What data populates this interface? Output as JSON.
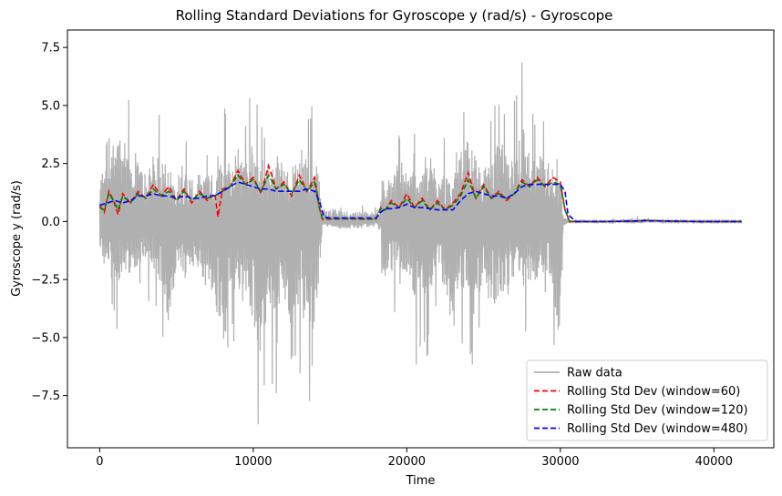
{
  "chart_data": {
    "type": "line",
    "title": "Rolling Standard Deviations for Gyroscope y (rad/s) - Gyroscope",
    "xlabel": "Time",
    "ylabel": "Gyroscope y (rad/s)",
    "xlim": [
      -2100,
      43900
    ],
    "ylim": [
      -9.75,
      8.25
    ],
    "xticks": [
      0,
      10000,
      20000,
      30000,
      40000
    ],
    "xtick_labels": [
      "0",
      "10000",
      "20000",
      "30000",
      "40000"
    ],
    "yticks": [
      -7.5,
      -5.0,
      -2.5,
      0.0,
      2.5,
      5.0,
      7.5
    ],
    "ytick_labels": [
      "−7.5",
      "−5.0",
      "−2.5",
      "0.0",
      "2.5",
      "5.0",
      "7.5"
    ],
    "grid": false,
    "legend_position": "lower-right",
    "raw_envelope": {
      "x": [
        0,
        500,
        1000,
        1500,
        2000,
        2500,
        3000,
        3500,
        4000,
        4500,
        5000,
        5500,
        6000,
        6500,
        7000,
        7500,
        8000,
        8500,
        9000,
        9500,
        10000,
        10500,
        11000,
        11500,
        12000,
        12500,
        13000,
        13500,
        14000,
        14300,
        14500,
        15000,
        16000,
        17000,
        18000,
        18300,
        18500,
        19000,
        19500,
        20000,
        20500,
        21000,
        21500,
        22000,
        22500,
        23000,
        23500,
        24000,
        24500,
        25000,
        25500,
        26000,
        26500,
        27000,
        27500,
        28000,
        28500,
        29000,
        29500,
        30000,
        30200,
        30400,
        31000,
        33000,
        35000,
        35500,
        37000,
        39000,
        41800
      ],
      "upper": [
        2.5,
        6.1,
        5.0,
        6.6,
        4.2,
        4.0,
        3.0,
        4.5,
        4.2,
        3.8,
        3.2,
        3.5,
        3.0,
        3.2,
        3.5,
        3.0,
        4.6,
        3.5,
        5.3,
        4.0,
        5.5,
        4.5,
        4.0,
        4.0,
        4.2,
        3.5,
        5.2,
        4.3,
        4.3,
        3.0,
        0.5,
        1.0,
        0.7,
        0.7,
        0.6,
        1.5,
        3.0,
        2.8,
        4.6,
        3.2,
        3.7,
        3.0,
        4.5,
        3.5,
        3.3,
        2.8,
        4.5,
        5.5,
        4.5,
        3.5,
        4.2,
        6.0,
        4.3,
        4.7,
        7.3,
        3.8,
        4.6,
        4.4,
        3.6,
        2.5,
        0.3,
        0.15,
        0.05,
        0.08,
        0.2,
        0.15,
        0.05,
        0.05,
        0.05
      ],
      "lower": [
        -1.5,
        -4.3,
        -4.2,
        -3.5,
        -3.5,
        -3.0,
        -2.5,
        -3.5,
        -4.6,
        -7.0,
        -3.2,
        -4.0,
        -3.0,
        -3.0,
        -5.0,
        -5.8,
        -8.8,
        -5.0,
        -5.5,
        -5.5,
        -7.0,
        -9.1,
        -6.5,
        -6.5,
        -5.5,
        -7.3,
        -5.6,
        -7.8,
        -8.0,
        -3.5,
        -0.3,
        -0.4,
        -0.5,
        -0.5,
        -0.2,
        -0.8,
        -4.3,
        -3.5,
        -3.0,
        -3.8,
        -5.5,
        -6.0,
        -5.0,
        -3.8,
        -5.0,
        -5.0,
        -4.5,
        -4.5,
        -7.2,
        -4.0,
        -6.0,
        -5.0,
        -4.5,
        -4.0,
        -5.0,
        -4.0,
        -4.0,
        -3.8,
        -4.5,
        -9.0,
        -0.3,
        -0.15,
        -0.05,
        -0.08,
        -0.15,
        -0.1,
        -0.05,
        -0.05,
        -0.05
      ]
    },
    "series": [
      {
        "name": "Raw data",
        "color": "#b0b0b0",
        "style": "solid",
        "x": [
          0,
          41800
        ],
        "values": [
          0.0,
          0.0
        ]
      },
      {
        "name": "Rolling Std Dev (window=60)",
        "color": "#ff0000",
        "style": "dashed",
        "x": [
          0,
          300,
          600,
          900,
          1200,
          1500,
          2000,
          2500,
          3000,
          3500,
          4000,
          4500,
          5000,
          5500,
          6000,
          6500,
          7000,
          7500,
          7700,
          8000,
          8500,
          9000,
          9500,
          10000,
          10500,
          11000,
          11500,
          12000,
          12500,
          13000,
          13500,
          14000,
          14300,
          14500,
          15000,
          16000,
          17000,
          18000,
          18300,
          18600,
          19000,
          19500,
          20000,
          20500,
          21000,
          21500,
          22000,
          22500,
          23000,
          23500,
          24000,
          24500,
          25000,
          25500,
          26000,
          26500,
          27000,
          27500,
          28000,
          28500,
          29000,
          29500,
          30000,
          30300,
          30600,
          31000,
          33000,
          35000,
          35500,
          37000,
          39000,
          41800
        ],
        "values": [
          0.7,
          0.4,
          1.3,
          0.9,
          0.3,
          1.2,
          0.8,
          1.3,
          1.0,
          1.6,
          1.1,
          1.5,
          0.9,
          1.4,
          0.8,
          1.3,
          0.9,
          1.2,
          0.2,
          1.4,
          1.5,
          2.2,
          1.6,
          1.9,
          1.2,
          2.4,
          1.4,
          1.7,
          1.1,
          2.0,
          1.3,
          1.9,
          0.6,
          0.1,
          0.1,
          0.12,
          0.1,
          0.1,
          0.6,
          0.5,
          0.9,
          0.6,
          1.2,
          0.6,
          1.0,
          0.5,
          0.9,
          0.5,
          0.8,
          1.2,
          2.1,
          1.0,
          1.6,
          1.0,
          1.3,
          0.9,
          1.2,
          1.8,
          1.5,
          1.9,
          1.5,
          1.9,
          1.7,
          0.5,
          0.0,
          0.0,
          0.0,
          0.02,
          0.05,
          0.02,
          0.0,
          0.0
        ]
      },
      {
        "name": "Rolling Std Dev (window=120)",
        "color": "#008000",
        "style": "dashed",
        "x": [
          0,
          300,
          600,
          900,
          1200,
          1500,
          2000,
          2500,
          3000,
          3500,
          4000,
          4500,
          5000,
          5500,
          6000,
          6500,
          7000,
          7500,
          8000,
          8500,
          9000,
          9500,
          10000,
          10500,
          11000,
          11500,
          12000,
          12500,
          13000,
          13500,
          14000,
          14300,
          14500,
          15000,
          16000,
          17000,
          18000,
          18300,
          18600,
          19000,
          19500,
          20000,
          20500,
          21000,
          21500,
          22000,
          22500,
          23000,
          23500,
          24000,
          24500,
          25000,
          25500,
          26000,
          26500,
          27000,
          27500,
          28000,
          28500,
          29000,
          29500,
          30000,
          30300,
          30600,
          31000,
          33000,
          35000,
          35500,
          37000,
          39000,
          41800
        ],
        "values": [
          0.6,
          0.5,
          1.2,
          0.9,
          0.5,
          1.1,
          0.8,
          1.2,
          1.0,
          1.4,
          1.1,
          1.3,
          0.9,
          1.3,
          0.9,
          1.2,
          1.0,
          1.1,
          1.3,
          1.5,
          2.0,
          1.6,
          1.8,
          1.3,
          2.0,
          1.4,
          1.6,
          1.2,
          1.8,
          1.3,
          1.7,
          0.6,
          0.15,
          0.12,
          0.12,
          0.12,
          0.1,
          0.55,
          0.5,
          0.8,
          0.6,
          1.0,
          0.6,
          0.9,
          0.5,
          0.8,
          0.5,
          0.7,
          1.1,
          1.8,
          1.0,
          1.5,
          1.0,
          1.2,
          1.0,
          1.2,
          1.7,
          1.5,
          1.8,
          1.5,
          1.7,
          1.6,
          0.5,
          0.0,
          0.0,
          0.0,
          0.02,
          0.05,
          0.02,
          0.0,
          0.0
        ]
      },
      {
        "name": "Rolling Std Dev (window=480)",
        "color": "#0000ff",
        "style": "dashed",
        "x": [
          0,
          500,
          1000,
          1500,
          2000,
          2500,
          3000,
          3500,
          4000,
          4500,
          5000,
          5500,
          6000,
          6500,
          7000,
          7500,
          8000,
          8500,
          9000,
          9500,
          10000,
          10500,
          11000,
          11500,
          12000,
          12500,
          13000,
          13500,
          14000,
          14300,
          14600,
          15000,
          16000,
          17000,
          18000,
          18300,
          18600,
          19000,
          19500,
          20000,
          20500,
          21000,
          21500,
          22000,
          22500,
          23000,
          23500,
          24000,
          24500,
          25000,
          25500,
          26000,
          26500,
          27000,
          27500,
          28000,
          28500,
          29000,
          29500,
          30000,
          30300,
          30500,
          31000,
          33000,
          35000,
          35500,
          37000,
          39000,
          41800
        ],
        "values": [
          0.7,
          0.8,
          0.9,
          0.8,
          0.9,
          1.1,
          1.1,
          1.2,
          1.1,
          1.1,
          1.0,
          1.1,
          1.0,
          1.0,
          1.1,
          1.1,
          1.3,
          1.5,
          1.7,
          1.6,
          1.5,
          1.4,
          1.4,
          1.3,
          1.3,
          1.3,
          1.3,
          1.4,
          1.3,
          0.9,
          0.2,
          0.15,
          0.15,
          0.15,
          0.15,
          0.4,
          0.55,
          0.55,
          0.6,
          0.75,
          0.6,
          0.6,
          0.55,
          0.5,
          0.5,
          0.5,
          0.9,
          1.2,
          1.3,
          1.2,
          1.1,
          1.1,
          1.0,
          1.2,
          1.5,
          1.6,
          1.6,
          1.6,
          1.6,
          1.6,
          1.3,
          0.3,
          0.0,
          0.0,
          0.02,
          0.03,
          0.02,
          0.0,
          0.0
        ]
      }
    ]
  }
}
